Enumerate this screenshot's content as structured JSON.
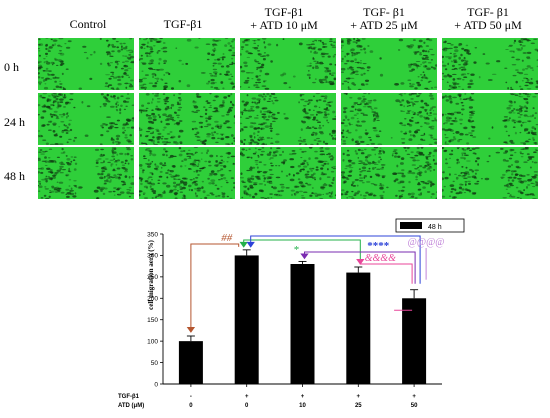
{
  "micrograph_panel": {
    "column_headers": [
      {
        "line1": "Control",
        "line2": ""
      },
      {
        "line1": "TGF-β1",
        "line2": ""
      },
      {
        "line1": "TGF-β1",
        "line2": "+ ATD 10 μM"
      },
      {
        "line1": "TGF- β1",
        "line2": "+ ATD 25 μM"
      },
      {
        "line1": "TGF- β1",
        "line2": "+ ATD 50 μM"
      }
    ],
    "row_labels": [
      "0 h",
      "24 h",
      "48 h"
    ],
    "image_tint": "#2fcf3a",
    "cell_color": "#0f3d12",
    "wound_open": [
      [
        0.42,
        0.42,
        0.42,
        0.42,
        0.42
      ],
      [
        0.3,
        0.12,
        0.2,
        0.22,
        0.32
      ],
      [
        0.2,
        0.02,
        0.06,
        0.1,
        0.24
      ]
    ]
  },
  "chart_data": {
    "type": "bar",
    "legend": [
      "48 h"
    ],
    "legend_placement": "top-right",
    "ylabel": "cell migration aera (%)",
    "ylim": [
      0,
      350
    ],
    "yticks": [
      0,
      50,
      100,
      150,
      200,
      250,
      300,
      350
    ],
    "categories": [
      "1",
      "2",
      "3",
      "4",
      "5"
    ],
    "values": [
      100,
      300,
      280,
      260,
      200
    ],
    "errors": [
      12,
      13,
      6,
      13,
      20
    ],
    "bar_color": "#000000",
    "treatment_rows": [
      {
        "label": "TGF-β1",
        "values": [
          "-",
          "+",
          "+",
          "+",
          "+"
        ]
      },
      {
        "label": "ATD (μM)",
        "values": [
          "0",
          "0",
          "10",
          "25",
          "50"
        ]
      }
    ],
    "annotations": [
      {
        "text": "##",
        "from": 0,
        "to": 1,
        "color": "#b5562f"
      },
      {
        "text": "*",
        "from": 2,
        "to": 1,
        "color": "#23b04a"
      },
      {
        "text": "****",
        "from": 4,
        "to": 1,
        "color": "#2d43d8"
      },
      {
        "text": "&&&&",
        "from": 4,
        "to": 3,
        "color": "#e8469a"
      },
      {
        "text": "@@@@",
        "from": 4,
        "to": 1,
        "color": "#c083d8"
      },
      {
        "text": "",
        "from": 3,
        "to": 2,
        "color": "#7a2bb0"
      }
    ]
  }
}
